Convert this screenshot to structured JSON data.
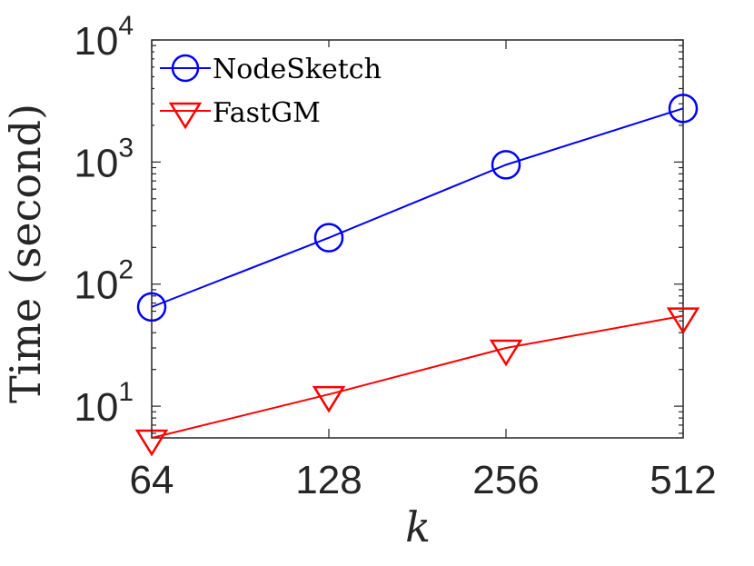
{
  "chart_data": {
    "type": "line",
    "xlabel": "k",
    "ylabel": "Time (second)",
    "x": [
      64,
      128,
      256,
      512
    ],
    "x_tick_labels": [
      "64",
      "128",
      "256",
      "512"
    ],
    "x_scale": "log2",
    "xlim": [
      64,
      512
    ],
    "y_scale": "log10",
    "ylim": [
      5.5,
      10000
    ],
    "y_ticks": [
      10,
      100,
      1000,
      10000
    ],
    "y_tick_base": "10",
    "y_tick_exponents": [
      "1",
      "2",
      "3",
      "4"
    ],
    "grid": false,
    "legend_position": "top-left",
    "series": [
      {
        "name": "NodeSketch",
        "color": "#0000ff",
        "marker": "circle",
        "values": [
          65,
          240,
          950,
          2750
        ]
      },
      {
        "name": "FastGM",
        "color": "#ff0000",
        "marker": "triangle-down",
        "values": [
          5.5,
          12.5,
          30,
          55
        ]
      }
    ]
  }
}
